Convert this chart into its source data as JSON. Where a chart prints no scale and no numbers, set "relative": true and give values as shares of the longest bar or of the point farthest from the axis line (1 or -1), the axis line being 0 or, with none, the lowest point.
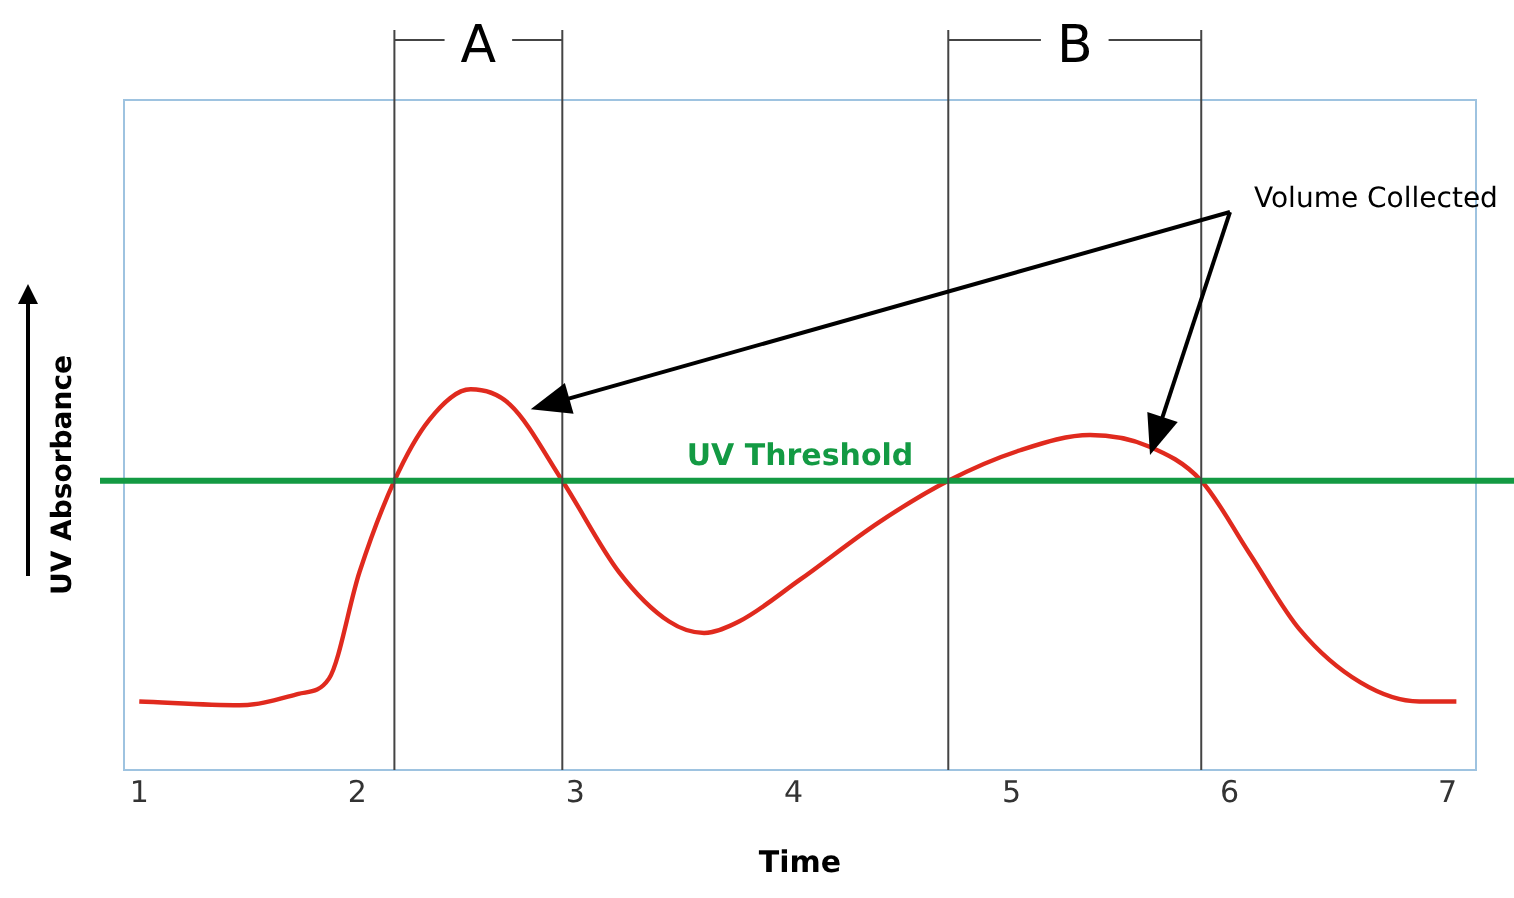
{
  "chart_data": {
    "type": "line",
    "relative": true,
    "xlabel": "Time",
    "ylabel": "UV Absorbance",
    "x": [
      1.0,
      1.46,
      1.73,
      1.87,
      2.01,
      2.17,
      2.33,
      2.52,
      2.7,
      2.94,
      3.2,
      3.43,
      3.59,
      3.75,
      4.03,
      4.39,
      4.71,
      5.04,
      5.36,
      5.63,
      5.87,
      6.09,
      6.32,
      6.6,
      6.87,
      7.04
    ],
    "series": [
      {
        "color": "#e02a1e",
        "values": [
          0.18,
          0.17,
          0.2,
          0.24,
          0.52,
          0.76,
          0.92,
          1.0,
          0.96,
          0.76,
          0.52,
          0.39,
          0.36,
          0.39,
          0.5,
          0.65,
          0.76,
          0.84,
          0.88,
          0.85,
          0.76,
          0.57,
          0.37,
          0.23,
          0.18,
          0.18
        ]
      }
    ],
    "xlim": [
      0.93,
      7.13
    ],
    "xticks": [
      1,
      2,
      3,
      4,
      5,
      6,
      7
    ],
    "ref_lines": [
      {
        "axis": "y",
        "value": 0.76,
        "label": "UV Threshold",
        "color": "#139a43"
      },
      {
        "axis": "x",
        "value": 2.17,
        "color": "#444444"
      },
      {
        "axis": "x",
        "value": 2.94,
        "color": "#444444"
      },
      {
        "axis": "x",
        "value": 4.71,
        "color": "#444444"
      },
      {
        "axis": "x",
        "value": 5.87,
        "color": "#444444"
      }
    ],
    "annotations": [
      "A",
      "B",
      "Volume Collected"
    ],
    "grid": false,
    "legend": false,
    "marker": "none",
    "line_style": "solid"
  }
}
